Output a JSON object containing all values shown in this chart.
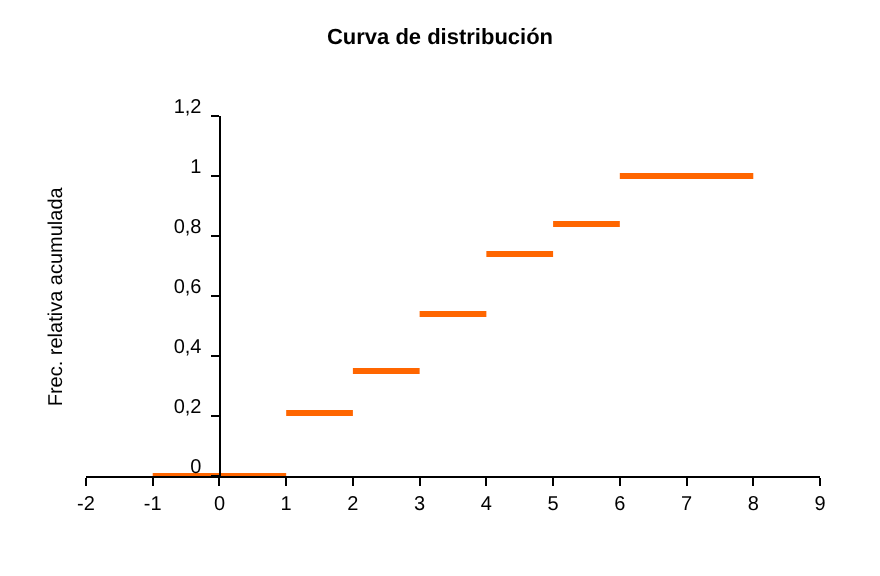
{
  "chart_data": {
    "type": "line",
    "title": "Curva de distribución",
    "ylabel": "Frec. relativa acumulada",
    "series": [
      {
        "color": "#ff6600",
        "x": [
          -1,
          1
        ],
        "values": [
          0,
          0
        ]
      },
      {
        "color": "#ff6600",
        "x": [
          1,
          2
        ],
        "values": [
          0.21,
          0.21
        ]
      },
      {
        "color": "#ff6600",
        "x": [
          2,
          3
        ],
        "values": [
          0.35,
          0.35
        ]
      },
      {
        "color": "#ff6600",
        "x": [
          3,
          4
        ],
        "values": [
          0.54,
          0.54
        ]
      },
      {
        "color": "#ff6600",
        "x": [
          4,
          5
        ],
        "values": [
          0.74,
          0.74
        ]
      },
      {
        "color": "#ff6600",
        "x": [
          5,
          6
        ],
        "values": [
          0.84,
          0.84
        ]
      },
      {
        "color": "#ff6600",
        "x": [
          6,
          8
        ],
        "values": [
          1,
          1
        ]
      }
    ],
    "xlim": [
      -2,
      9
    ],
    "xticks": [
      -2,
      -1,
      0,
      1,
      2,
      3,
      4,
      5,
      6,
      7,
      8,
      9
    ],
    "ylim": [
      0,
      1.2
    ],
    "yticks": [
      0,
      {
        "value": 0.2,
        "label": "0,2"
      },
      {
        "value": 0.4,
        "label": "0,4"
      },
      {
        "value": 0.6,
        "label": "0,6"
      },
      {
        "value": 0.8,
        "label": "0,8"
      },
      1,
      {
        "value": 1.2,
        "label": "1,2"
      }
    ],
    "line_style": "solid"
  }
}
